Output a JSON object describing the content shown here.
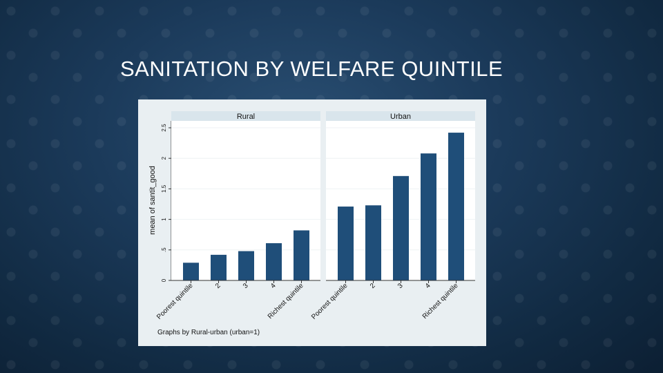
{
  "slide": {
    "title": "SANITATION BY WELFARE QUINTILE"
  },
  "colors": {
    "bar": "#1f4e79",
    "panel_strip": "#d9e5ec",
    "plot_bg": "#ffffff",
    "figure_bg": "#e9eff2"
  },
  "chart_data": {
    "type": "bar",
    "ylabel": "mean of santit_good",
    "ylim": [
      0,
      2.5
    ],
    "yticks": [
      "0",
      ".5",
      "1",
      "1.5",
      "2",
      "2.5"
    ],
    "ytick_values": [
      0,
      0.5,
      1,
      1.5,
      2,
      2.5
    ],
    "categories": [
      "Poorest quintile",
      "2",
      "3",
      "4",
      "Richest quintile"
    ],
    "panels": [
      {
        "name": "Rural",
        "values": [
          0.29,
          0.42,
          0.48,
          0.61,
          0.82
        ]
      },
      {
        "name": "Urban",
        "values": [
          1.21,
          1.23,
          1.71,
          2.08,
          2.42
        ]
      }
    ],
    "note": "Graphs by Rural-urban (urban=1)",
    "grid": true
  }
}
